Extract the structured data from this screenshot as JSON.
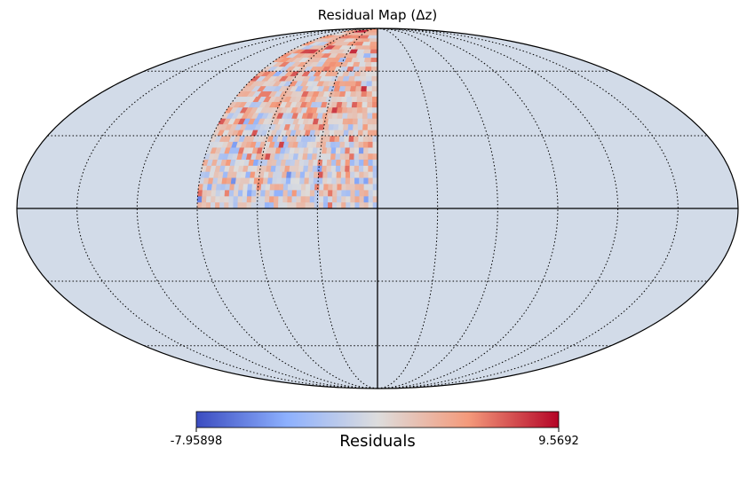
{
  "chart_data": {
    "type": "heatmap",
    "projection": "mollweide",
    "title": "Residual Map (Δz)",
    "colorbar": {
      "label": "Residuals",
      "min_label": "-7.95898",
      "max_label": "9.5692",
      "min": -7.95898,
      "max": 9.5692,
      "colormap": "coolwarm"
    },
    "background_color": "#d2dbe8",
    "graticule": {
      "longitude_step_deg": 30,
      "latitude_step_deg": 30,
      "style": "dotted",
      "solid_lines": [
        "equator",
        "central-meridian"
      ]
    },
    "coverage": {
      "lon_range_deg": [
        -90,
        0
      ],
      "lat_range_deg": [
        0,
        90
      ],
      "description_note": "residuals sampled over NW quadrant; red-biased toward higher latitudes"
    },
    "colors": {
      "cold": "#3b4cc0",
      "neutral": "#dddddd",
      "hot": "#b40426"
    }
  }
}
